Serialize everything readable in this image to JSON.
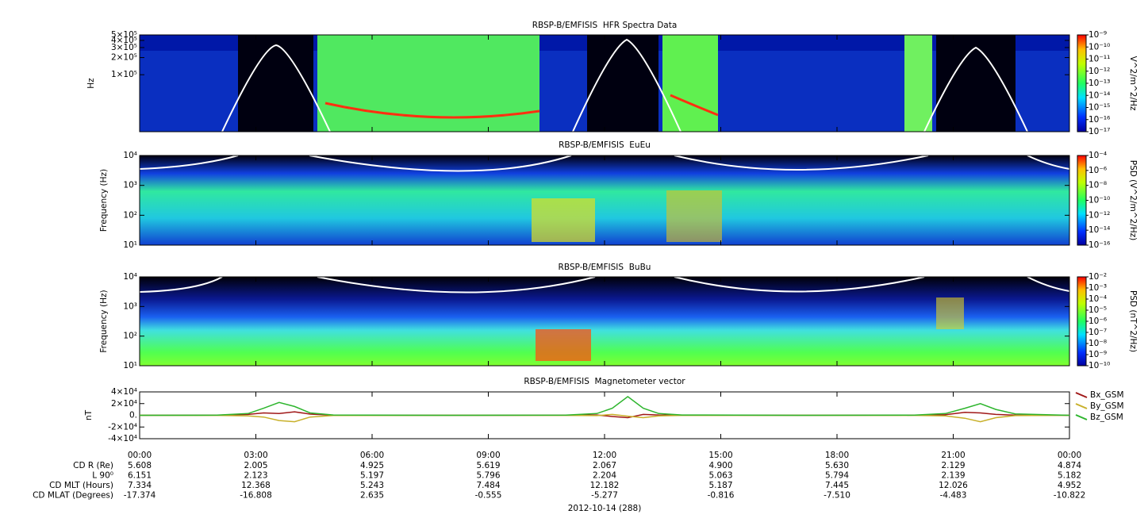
{
  "chart_data": [
    {
      "type": "spectrogram",
      "title": "RBSP-B/EMFISIS  HFR Spectra Data",
      "ylabel": "Hz",
      "yscale": "log",
      "ylim": [
        10000,
        500000
      ],
      "yticks": [
        {
          "value": 500000,
          "label": "5×10⁵"
        },
        {
          "value": 400000,
          "label": "4×10⁵"
        },
        {
          "value": 300000,
          "label": "3×10⁵"
        },
        {
          "value": 200000,
          "label": "2×10⁵"
        },
        {
          "value": 100000,
          "label": "1×10⁵"
        }
      ],
      "xlim": [
        0,
        24
      ],
      "colorbar_label": "V^2/m^2/Hz",
      "zscale": "log",
      "zlim": [
        1e-17,
        1e-09
      ],
      "zticks": [
        {
          "value": 1e-09,
          "label": "10⁻⁹"
        },
        {
          "value": 1e-10,
          "label": "10⁻¹⁰"
        },
        {
          "value": 1e-11,
          "label": "10⁻¹¹"
        },
        {
          "value": 1e-12,
          "label": "10⁻¹²"
        },
        {
          "value": 1e-13,
          "label": "10⁻¹³"
        },
        {
          "value": 1e-14,
          "label": "10⁻¹⁴"
        },
        {
          "value": 1e-15,
          "label": "10⁻¹⁵"
        },
        {
          "value": 1e-16,
          "label": "10⁻¹⁶"
        },
        {
          "value": 1e-17,
          "label": "10⁻¹⁷"
        }
      ]
    },
    {
      "type": "spectrogram",
      "title": "RBSP-B/EMFISIS  EuEu",
      "ylabel": "Frequency (Hz)",
      "yscale": "log",
      "ylim": [
        10,
        10000
      ],
      "yticks": [
        {
          "value": 10000,
          "label": "10⁴"
        },
        {
          "value": 1000,
          "label": "10³"
        },
        {
          "value": 100,
          "label": "10²"
        },
        {
          "value": 10,
          "label": "10¹"
        }
      ],
      "xlim": [
        0,
        24
      ],
      "colorbar_label": "PSD (V^2/m^2/Hz)",
      "zscale": "log",
      "zlim": [
        1e-16,
        0.0001
      ],
      "zticks": [
        {
          "value": 0.0001,
          "label": "10⁻⁴"
        },
        {
          "value": 1e-06,
          "label": "10⁻⁶"
        },
        {
          "value": 1e-08,
          "label": "10⁻⁸"
        },
        {
          "value": 1e-10,
          "label": "10⁻¹⁰"
        },
        {
          "value": 1e-12,
          "label": "10⁻¹²"
        },
        {
          "value": 1e-14,
          "label": "10⁻¹⁴"
        },
        {
          "value": 1e-16,
          "label": "10⁻¹⁶"
        }
      ]
    },
    {
      "type": "spectrogram",
      "title": "RBSP-B/EMFISIS  BuBu",
      "ylabel": "Frequency (Hz)",
      "yscale": "log",
      "ylim": [
        10,
        10000
      ],
      "yticks": [
        {
          "value": 10000,
          "label": "10⁴"
        },
        {
          "value": 1000,
          "label": "10³"
        },
        {
          "value": 100,
          "label": "10²"
        },
        {
          "value": 10,
          "label": "10¹"
        }
      ],
      "xlim": [
        0,
        24
      ],
      "colorbar_label": "PSD (nT^2/Hz)",
      "zscale": "log",
      "zlim": [
        1e-10,
        0.01
      ],
      "zticks": [
        {
          "value": 0.01,
          "label": "10⁻²"
        },
        {
          "value": 0.001,
          "label": "10⁻³"
        },
        {
          "value": 0.0001,
          "label": "10⁻⁴"
        },
        {
          "value": 1e-05,
          "label": "10⁻⁵"
        },
        {
          "value": 1e-06,
          "label": "10⁻⁶"
        },
        {
          "value": 1e-07,
          "label": "10⁻⁷"
        },
        {
          "value": 1e-08,
          "label": "10⁻⁸"
        },
        {
          "value": 1e-09,
          "label": "10⁻⁹"
        },
        {
          "value": 1e-10,
          "label": "10⁻¹⁰"
        }
      ]
    },
    {
      "type": "line",
      "title": "RBSP-B/EMFISIS  Magnetometer vector",
      "ylabel": "nT",
      "ylim": [
        -40000,
        40000
      ],
      "yticks": [
        {
          "value": 40000,
          "label": "4×10⁴"
        },
        {
          "value": 20000,
          "label": "2×10⁴"
        },
        {
          "value": 0,
          "label": "0."
        },
        {
          "value": -20000,
          "label": "-2×10⁴"
        },
        {
          "value": -40000,
          "label": "-4×10⁴"
        }
      ],
      "xlim": [
        0,
        24
      ],
      "xticks": [
        {
          "value": 0,
          "label": "00:00"
        },
        {
          "value": 3,
          "label": "03:00"
        },
        {
          "value": 6,
          "label": "06:00"
        },
        {
          "value": 9,
          "label": "09:00"
        },
        {
          "value": 12,
          "label": "12:00"
        },
        {
          "value": 15,
          "label": "15:00"
        },
        {
          "value": 18,
          "label": "18:00"
        },
        {
          "value": 21,
          "label": "21:00"
        },
        {
          "value": 24,
          "label": "00:00"
        }
      ],
      "x": [
        0,
        2,
        2.8,
        3.2,
        3.6,
        4.0,
        4.4,
        5,
        8,
        11,
        11.8,
        12.2,
        12.6,
        13.0,
        13.4,
        14,
        17,
        20,
        20.8,
        21.3,
        21.7,
        22.1,
        22.6,
        24
      ],
      "series": [
        {
          "name": "Bx_GSM",
          "color": "#a01818",
          "values": [
            0,
            100,
            1500,
            4000,
            3000,
            6000,
            2000,
            200,
            0,
            100,
            500,
            -2000,
            -4000,
            1500,
            500,
            100,
            0,
            100,
            1000,
            5000,
            4000,
            1500,
            300,
            0
          ]
        },
        {
          "name": "By_GSM",
          "color": "#c8b02a",
          "values": [
            0,
            -100,
            -1000,
            -3000,
            -9000,
            -11000,
            -3000,
            -300,
            0,
            -100,
            -500,
            1500,
            -1500,
            -4000,
            -1000,
            -100,
            0,
            -100,
            -1000,
            -5000,
            -11000,
            -4000,
            -500,
            0
          ]
        },
        {
          "name": "Bz_GSM",
          "color": "#2db52d",
          "values": [
            0,
            300,
            3000,
            12000,
            22000,
            15000,
            4000,
            500,
            0,
            300,
            3000,
            12000,
            32000,
            12000,
            3000,
            500,
            0,
            300,
            3000,
            12000,
            20000,
            10000,
            2500,
            0
          ]
        }
      ],
      "legend": "right"
    }
  ],
  "ephemeris": {
    "rows": [
      {
        "label": "CD R (Re)",
        "values": [
          "5.608",
          "2.005",
          "4.925",
          "5.619",
          "2.067",
          "4.900",
          "5.630",
          "2.129",
          "4.874"
        ]
      },
      {
        "label": "L 90⁰",
        "values": [
          "6.151",
          "2.123",
          "5.197",
          "5.796",
          "2.204",
          "5.063",
          "5.794",
          "2.139",
          "5.182"
        ]
      },
      {
        "label": "CD MLT (Hours)",
        "values": [
          "7.334",
          "12.368",
          "5.243",
          "7.484",
          "12.182",
          "5.187",
          "7.445",
          "12.026",
          "4.952"
        ]
      },
      {
        "label": "CD MLAT (Degrees)",
        "values": [
          "-17.374",
          "-16.808",
          "2.635",
          "-0.555",
          "-5.277",
          "-0.816",
          "-7.510",
          "-4.483",
          "-10.822"
        ]
      }
    ]
  },
  "date_label": "2012-10-14 (288)"
}
